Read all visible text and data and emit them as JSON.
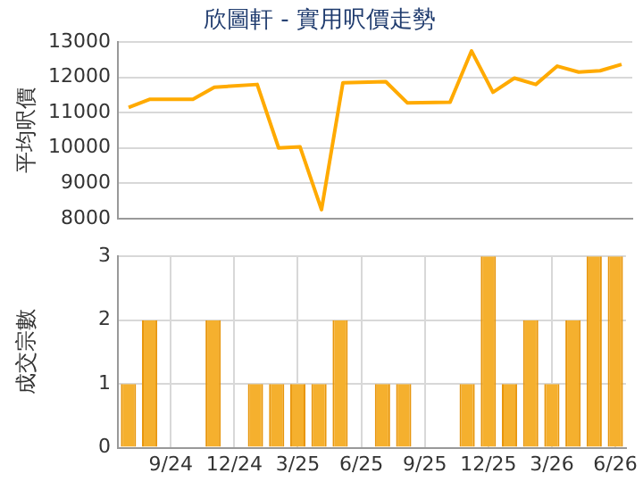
{
  "chart_data": [
    {
      "type": "line",
      "title": "欣圖軒 - 實用呎價走勢",
      "ylabel": "平均呎價",
      "categories": [
        null,
        null,
        null,
        null,
        null,
        null,
        null,
        null,
        null,
        null,
        null,
        null,
        null,
        null,
        null,
        null,
        null,
        null,
        null,
        null,
        null,
        null,
        null,
        null
      ],
      "series": [
        {
          "color": "#ffaa00",
          "values": [
            11150,
            11380,
            null,
            11380,
            11720,
            null,
            11800,
            10000,
            10030,
            8250,
            11850,
            null,
            11880,
            11280,
            null,
            11300,
            12750,
            11580,
            11980,
            11800,
            12320,
            12150,
            12190,
            12370
          ]
        }
      ],
      "ylim": [
        8000,
        13000
      ],
      "yticks": [
        8000,
        9000,
        10000,
        11000,
        12000,
        13000
      ],
      "grid": true,
      "legend": false,
      "marker": "none",
      "line_style": "solid",
      "tick_labels": "y"
    },
    {
      "type": "bar",
      "ylabel": "成交宗數",
      "categories": [
        null,
        null,
        "9/24",
        null,
        null,
        "12/24",
        null,
        null,
        "3/25",
        null,
        null,
        "6/25",
        null,
        null,
        "9/25",
        null,
        null,
        "12/25",
        null,
        null,
        "3/26",
        null,
        null,
        "6/26"
      ],
      "series": [
        {
          "color": "#f5b02e",
          "values": [
            1,
            2,
            0,
            0,
            2,
            0,
            1,
            1,
            1,
            1,
            2,
            0,
            1,
            1,
            0,
            0,
            1,
            3,
            1,
            2,
            1,
            2,
            3,
            3
          ]
        }
      ],
      "ylim": [
        0,
        3
      ],
      "yticks": [
        0,
        1,
        2,
        3
      ],
      "grid": true,
      "legend": false
    }
  ]
}
